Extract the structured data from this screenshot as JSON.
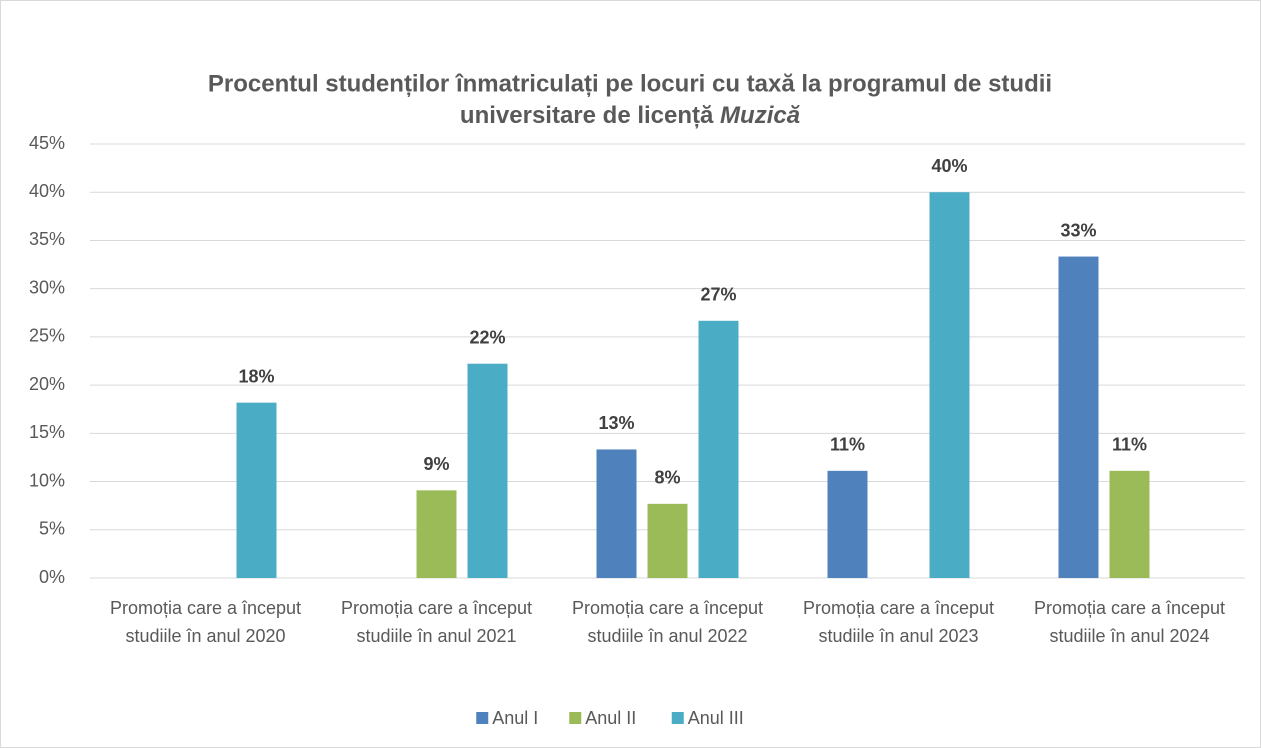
{
  "chart_data": {
    "type": "bar",
    "title": [
      "Procentul studenților înmatriculați pe locuri cu taxă la programul de studii",
      "universitare de licență",
      "Muzică"
    ],
    "categories": [
      "Promoția care a început studiile în anul 2020",
      "Promoția care a început studiile în anul 2021",
      "Promoția care a început studiile în anul 2022",
      "Promoția care a început studiile în anul 2023",
      "Promoția care a început studiile în anul 2024"
    ],
    "series": [
      {
        "name": "Anul I",
        "color": "#4f81bd",
        "values": [
          null,
          null,
          13.33,
          11.11,
          33.33
        ],
        "value_labels": [
          null,
          null,
          "13%",
          "11%",
          "33%"
        ]
      },
      {
        "name": "Anul II",
        "color": "#9bbb59",
        "values": [
          null,
          9.09,
          7.69,
          null,
          11.11
        ],
        "value_labels": [
          null,
          "9%",
          "8%",
          null,
          "11%"
        ]
      },
      {
        "name": "Anul III",
        "color": "#4bacc6",
        "values": [
          18.18,
          22.22,
          26.67,
          40,
          null
        ],
        "value_labels": [
          "18%",
          "22%",
          "27%",
          "40%",
          null
        ]
      }
    ],
    "ylim": [
      0,
      45
    ],
    "yticks": [
      {
        "value": 0,
        "label": "0%"
      },
      {
        "value": 5,
        "label": "5%"
      },
      {
        "value": 10,
        "label": "10%"
      },
      {
        "value": 15,
        "label": "15%"
      },
      {
        "value": 20,
        "label": "20%"
      },
      {
        "value": 25,
        "label": "25%"
      },
      {
        "value": 30,
        "label": "30%"
      },
      {
        "value": 35,
        "label": "35%"
      },
      {
        "value": 40,
        "label": "40%"
      },
      {
        "value": 45,
        "label": "45%"
      }
    ],
    "grid": true,
    "legend": "bottom"
  }
}
